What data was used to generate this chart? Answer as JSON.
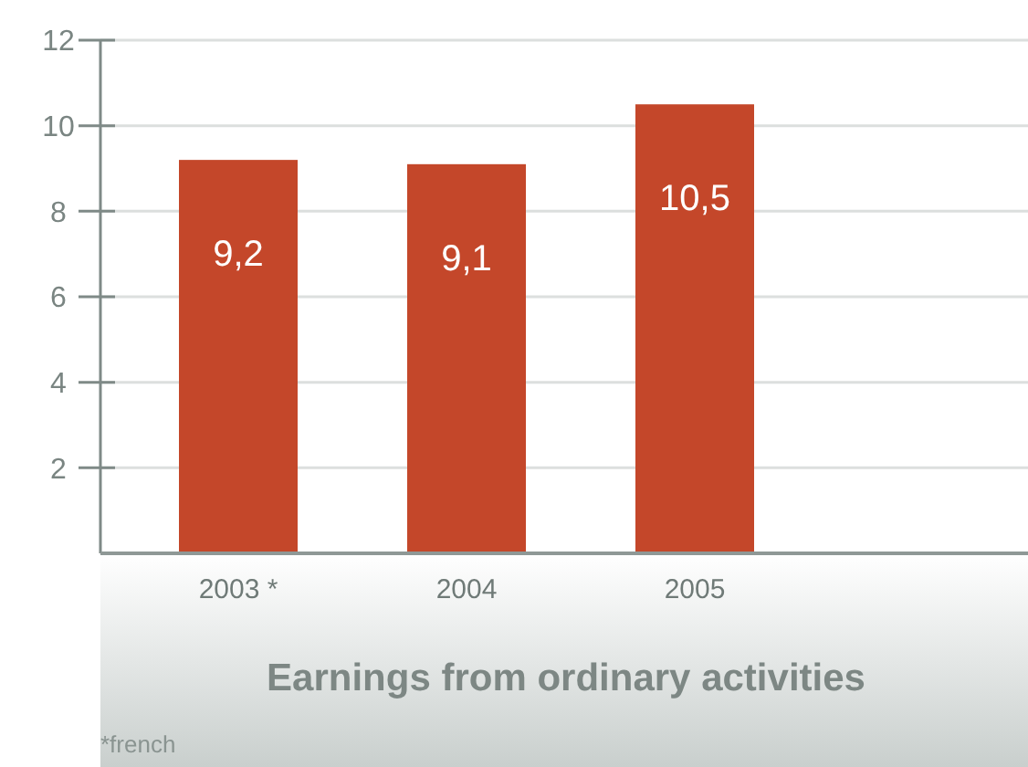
{
  "chart_data": {
    "type": "bar",
    "title": "Earnings from ordinary activities",
    "categories": [
      "2003 *",
      "2004",
      "2005"
    ],
    "values": [
      9.2,
      9.1,
      10.5
    ],
    "color": "#c4472a",
    "ylim": [
      0,
      12
    ],
    "yticks": [
      2,
      4,
      6,
      8,
      10,
      12
    ],
    "grid": "y",
    "value_labels": [
      "9,2",
      "9,1",
      "10,5"
    ],
    "annotations": [
      "*french"
    ]
  }
}
